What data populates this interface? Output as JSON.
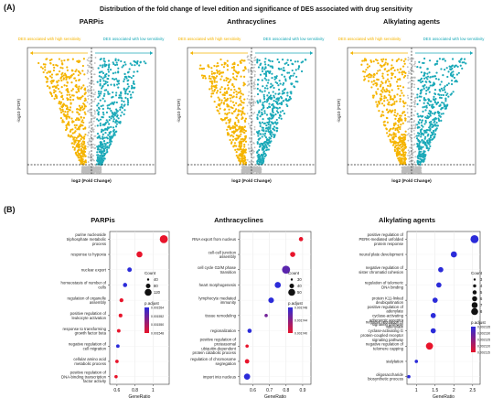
{
  "figure": {
    "panel_a_label": "(A)",
    "panel_b_label": "(B)",
    "panel_a_title": "Distribution of the fold change of level edition and significance of DES associated with drug sensitivity"
  },
  "colors": {
    "high": "#F5B400",
    "low": "#1BA9B8",
    "ns": "#BDBDBD",
    "padj_low": "#E8142B",
    "padj_high": "#2B2BD9"
  },
  "chart_data": [
    {
      "type": "scatter",
      "panel": "A",
      "title": "PARPis",
      "left_label": "DES associated with high sensitivity",
      "right_label": "DES associated with low sensitivity",
      "xlabel": "log2 (Fold Change)",
      "ylabel": "-log10 (FDR)",
      "vertical_cutoff": 0,
      "horizontal_cutoff": 1.3
    },
    {
      "type": "scatter",
      "panel": "A",
      "title": "Anthracyclines",
      "left_label": "DES associated with high sensitivity",
      "right_label": "DES associated with low sensitivity",
      "xlabel": "log2 (Fold Change)",
      "ylabel": "-log10 (FDR)",
      "vertical_cutoff": 0,
      "horizontal_cutoff": 1.3
    },
    {
      "type": "scatter",
      "panel": "A",
      "title": "Alkylating agents",
      "left_label": "DES associated with high sensitivity",
      "right_label": "DES associated with low sensitivity",
      "xlabel": "log2 (Fold Change)",
      "ylabel": "-log10 (FDR)",
      "vertical_cutoff": 0,
      "horizontal_cutoff": 1.3
    },
    {
      "type": "scatter",
      "panel": "B",
      "title": "PARPis",
      "xlabel": "GeneRatio",
      "xticks": [
        0.6,
        0.8,
        1.0
      ],
      "xlim": [
        0.52,
        1.18
      ],
      "count_legend_title": "Count",
      "count_legend": [
        40,
        80,
        120
      ],
      "padj_legend_title": "p.adjust",
      "padj_legend": [
        "0.001554",
        "0.001552",
        "0.001550",
        "0.001548"
      ],
      "points": [
        {
          "term": "purine nucleoside triphosphate metabolic process",
          "ratio": 1.12,
          "count": 120,
          "padj": 0.001548
        },
        {
          "term": "response to hypoxia",
          "ratio": 0.85,
          "count": 85,
          "padj": 0.001548
        },
        {
          "term": "nuclear export",
          "ratio": 0.74,
          "count": 60,
          "padj": 0.001554
        },
        {
          "term": "homeostasis of number of cells",
          "ratio": 0.69,
          "count": 55,
          "padj": 0.001554
        },
        {
          "term": "regulation of organelle assembly",
          "ratio": 0.65,
          "count": 50,
          "padj": 0.001548
        },
        {
          "term": "positive regulation of leukocyte activation",
          "ratio": 0.64,
          "count": 48,
          "padj": 0.001548
        },
        {
          "term": "response to transforming growth factor beta",
          "ratio": 0.62,
          "count": 45,
          "padj": 0.001548
        },
        {
          "term": "negative regulation of cell migration",
          "ratio": 0.61,
          "count": 44,
          "padj": 0.001554
        },
        {
          "term": "cellular amino acid metabolic process",
          "ratio": 0.6,
          "count": 42,
          "padj": 0.001548
        },
        {
          "term": "positive regulation of DNA-binding transcription factor activity",
          "ratio": 0.59,
          "count": 40,
          "padj": 0.001548
        }
      ]
    },
    {
      "type": "scatter",
      "panel": "B",
      "title": "Anthracyclines",
      "xlabel": "GeneRatio",
      "xticks": [
        0.6,
        0.7,
        0.8,
        0.9
      ],
      "xlim": [
        0.52,
        0.95
      ],
      "count_legend_title": "Count",
      "count_legend": [
        30,
        40,
        50
      ],
      "padj_legend_title": "p.adjust",
      "padj_legend": [
        "0.001748",
        "0.001744",
        "0.001740"
      ],
      "points": [
        {
          "term": "RNA export from nucleus",
          "ratio": 0.89,
          "count": 35,
          "padj": 0.00174
        },
        {
          "term": "cell-cell junction assembly",
          "ratio": 0.84,
          "count": 40,
          "padj": 0.00174
        },
        {
          "term": "cell cycle G2/M phase transition",
          "ratio": 0.8,
          "count": 55,
          "padj": 0.001746
        },
        {
          "term": "heart morphogenesis",
          "ratio": 0.75,
          "count": 45,
          "padj": 0.001748
        },
        {
          "term": "lymphocyte mediated immunity",
          "ratio": 0.71,
          "count": 42,
          "padj": 0.001748
        },
        {
          "term": "tissue remodeling",
          "ratio": 0.68,
          "count": 30,
          "padj": 0.001745
        },
        {
          "term": "regionalization",
          "ratio": 0.58,
          "count": 35,
          "padj": 0.001748
        },
        {
          "term": "positive regulation of proteasomal ubiquitin-dependent protein catabolic process",
          "ratio": 0.565,
          "count": 30,
          "padj": 0.00174
        },
        {
          "term": "regulation of chromosome segregation",
          "ratio": 0.565,
          "count": 36,
          "padj": 0.00174
        },
        {
          "term": "import into nucleus",
          "ratio": 0.565,
          "count": 45,
          "padj": 0.001748
        }
      ]
    },
    {
      "type": "scatter",
      "panel": "B",
      "title": "Alkylating agents",
      "xlabel": "GeneRatio",
      "xticks": [
        1.0,
        1.5,
        2.0,
        2.5
      ],
      "xlim": [
        0.75,
        2.7
      ],
      "count_legend_title": "Count",
      "count_legend": [
        3,
        4,
        5,
        6,
        7,
        8
      ],
      "padj_legend_title": "p.adjust",
      "padj_legend": [
        "0.002135",
        "0.002130",
        "0.002125",
        "0.002120",
        "0.002115"
      ],
      "points": [
        {
          "term": "positive regulation of PERK-mediated unfolded protein response",
          "ratio": 2.55,
          "count": 8,
          "padj": 0.002135
        },
        {
          "term": "neural plate development",
          "ratio": 2.0,
          "count": 6,
          "padj": 0.002135
        },
        {
          "term": "negative regulation of sister chromatid cohesion",
          "ratio": 1.65,
          "count": 5,
          "padj": 0.002135
        },
        {
          "term": "regulation of telomeric DNA binding",
          "ratio": 1.6,
          "count": 5,
          "padj": 0.002135
        },
        {
          "term": "protein K11-linked deubiquitination",
          "ratio": 1.5,
          "count": 5,
          "padj": 0.002135
        },
        {
          "term": "positive regulation of adenylate cyclase-activating adrenergic receptor signaling pathway",
          "ratio": 1.45,
          "count": 5,
          "padj": 0.002135
        },
        {
          "term": "negative regulation of adenylate cyclase-activating G protein-coupled receptor signaling pathway",
          "ratio": 1.45,
          "count": 5,
          "padj": 0.002135
        },
        {
          "term": "negative regulation of telomere capping",
          "ratio": 1.35,
          "count": 7,
          "padj": 0.002115
        },
        {
          "term": "sialylation",
          "ratio": 1.0,
          "count": 3,
          "padj": 0.002135
        },
        {
          "term": "oligosaccharide biosynthetic process",
          "ratio": 0.8,
          "count": 3,
          "padj": 0.002135
        }
      ]
    }
  ]
}
